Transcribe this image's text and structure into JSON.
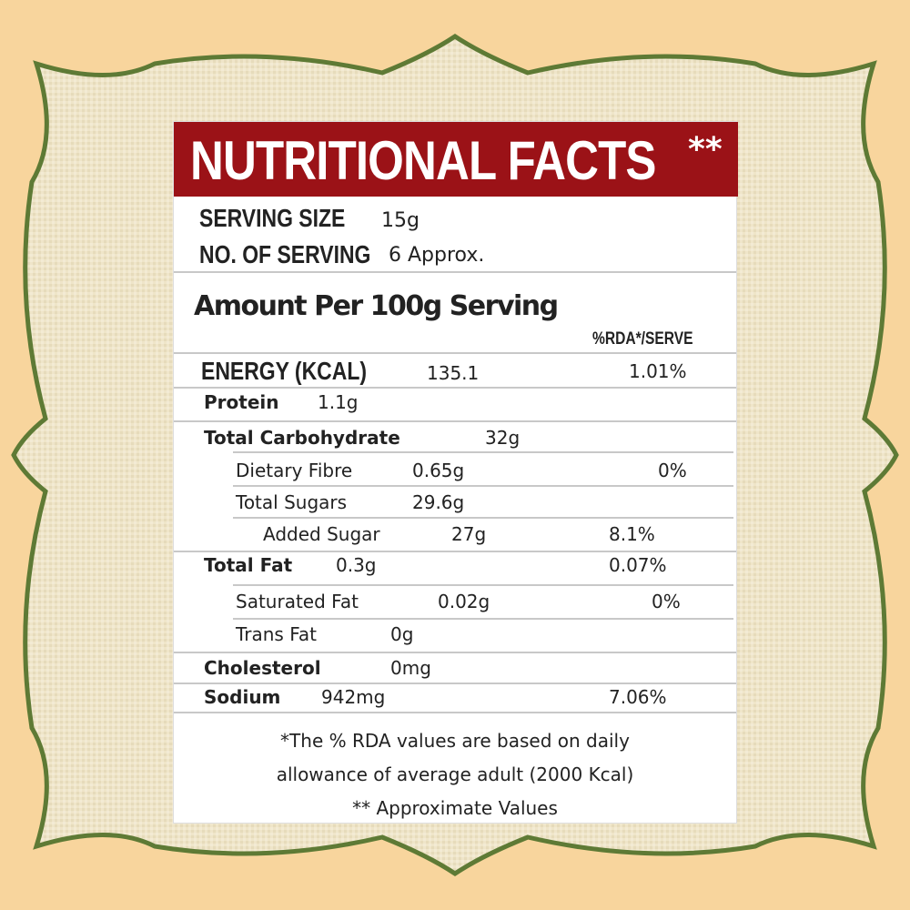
{
  "colors": {
    "background": "#f8d59d",
    "burlap": "#efe5c9",
    "frame_border": "#5e7a35",
    "header_bg": "#9b1217"
  },
  "header": {
    "title": "NUTRITIONAL FACTS",
    "mark": "**"
  },
  "serving": {
    "size_label": "SERVING SIZE",
    "size_value": "15g",
    "count_label": "NO. OF SERVING",
    "count_value": "6 Approx."
  },
  "amount_heading": "Amount Per 100g Serving",
  "rda_heading": "%RDA*/SERVE",
  "energy": {
    "label": "ENERGY (KCAL)",
    "value": "135.1",
    "rda": "1.01%"
  },
  "rows": [
    {
      "label": "Protein",
      "value": "1.1g",
      "rda": ""
    },
    {
      "label": "Total Carbohydrate",
      "value": "32g",
      "rda": ""
    },
    {
      "label": "Dietary Fibre",
      "value": "0.65g",
      "rda": "0%"
    },
    {
      "label": "Total Sugars",
      "value": "29.6g",
      "rda": ""
    },
    {
      "label": "Added Sugar",
      "value": "27g",
      "rda": "8.1%"
    },
    {
      "label": "Total Fat",
      "value": "0.3g",
      "rda": "0.07%"
    },
    {
      "label": "Saturated Fat",
      "value": "0.02g",
      "rda": "0%"
    },
    {
      "label": "Trans Fat",
      "value": "0g",
      "rda": ""
    },
    {
      "label": "Cholesterol",
      "value": "0mg",
      "rda": ""
    },
    {
      "label": "Sodium",
      "value": "942mg",
      "rda": "7.06%"
    }
  ],
  "footnote": {
    "line1": "*The % RDA values are based on daily",
    "line2": "allowance of average adult (2000 Kcal)",
    "line3": "** Approximate Values"
  }
}
